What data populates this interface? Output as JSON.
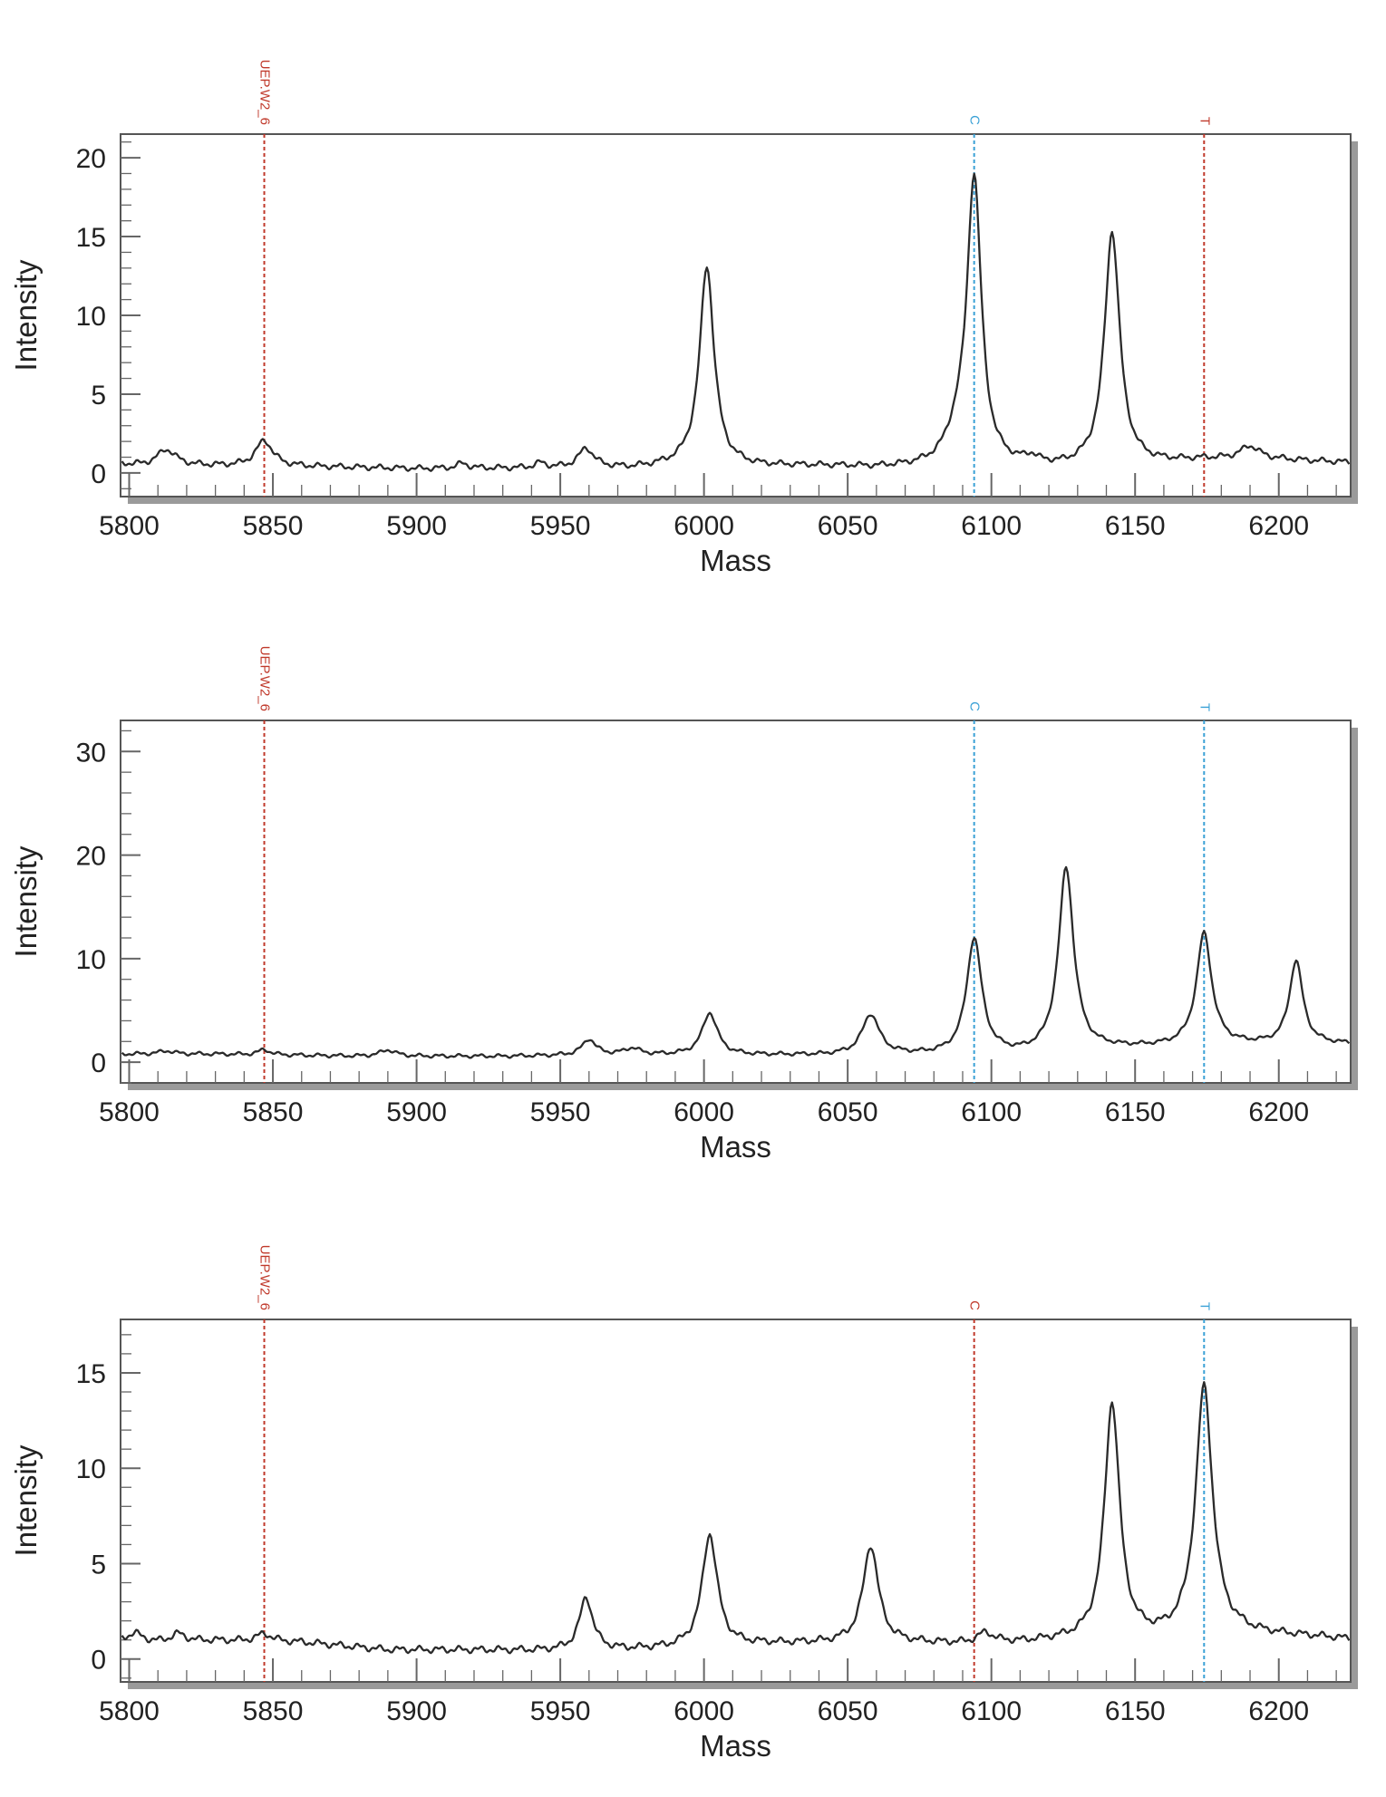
{
  "colors": {
    "red_marker": "#c0392b",
    "blue_marker": "#3aa1d6",
    "trace": "#2a2a2a"
  },
  "chart_data": [
    {
      "type": "line",
      "xlabel": "Mass",
      "ylabel": "Intensity",
      "xlim": [
        5797,
        6225
      ],
      "ylim": [
        -1.5,
        21.5
      ],
      "xticks": [
        5800,
        5850,
        5900,
        5950,
        6000,
        6050,
        6100,
        6150,
        6200
      ],
      "xtick_labels": [
        "5800",
        "5850",
        "5900",
        "5950",
        "6000",
        "6050",
        "6100",
        "6150",
        "6200"
      ],
      "yticks": [
        0,
        5,
        10,
        15,
        20
      ],
      "ytick_labels": [
        "0",
        "5",
        "10",
        "15",
        "20"
      ],
      "markers": [
        {
          "label": "UEP.W2_6",
          "x": 5847,
          "color": "red"
        },
        {
          "label": "C",
          "x": 6094,
          "color": "blue"
        },
        {
          "label": "T",
          "x": 6174,
          "color": "red"
        }
      ],
      "baseline": [
        [
          5797,
          0.6
        ],
        [
          5805,
          0.5
        ],
        [
          5830,
          0.5
        ],
        [
          5860,
          0.45
        ],
        [
          5900,
          0.3
        ],
        [
          5940,
          0.35
        ],
        [
          5975,
          0.45
        ],
        [
          5995,
          0.8
        ],
        [
          6020,
          0.6
        ],
        [
          6060,
          0.5
        ],
        [
          6080,
          0.7
        ],
        [
          6110,
          0.8
        ],
        [
          6125,
          0.7
        ],
        [
          6160,
          0.9
        ],
        [
          6175,
          1.0
        ],
        [
          6200,
          0.9
        ],
        [
          6225,
          0.7
        ]
      ],
      "peaks": [
        {
          "x": 5813,
          "height": 1.0,
          "width": 5
        },
        {
          "x": 5847,
          "height": 1.6,
          "width": 4.5
        },
        {
          "x": 5916,
          "height": 0.3,
          "width": 3
        },
        {
          "x": 5943,
          "height": 0.3,
          "width": 3
        },
        {
          "x": 5959,
          "height": 1.2,
          "width": 4
        },
        {
          "x": 6001,
          "height": 12.4,
          "width": 3.8
        },
        {
          "x": 6088,
          "height": 1.5,
          "width": 6
        },
        {
          "x": 6094,
          "height": 17.8,
          "width": 3.8
        },
        {
          "x": 6114,
          "height": 0.4,
          "width": 3
        },
        {
          "x": 6142,
          "height": 14.6,
          "width": 4
        },
        {
          "x": 6190,
          "height": 0.8,
          "width": 5
        }
      ]
    },
    {
      "type": "line",
      "xlabel": "Mass",
      "ylabel": "Intensity",
      "xlim": [
        5797,
        6225
      ],
      "ylim": [
        -2,
        33
      ],
      "xticks": [
        5800,
        5850,
        5900,
        5950,
        6000,
        6050,
        6100,
        6150,
        6200
      ],
      "xtick_labels": [
        "5800",
        "5850",
        "5900",
        "5950",
        "6000",
        "6050",
        "6100",
        "6150",
        "6200"
      ],
      "yticks": [
        0,
        10,
        20,
        30
      ],
      "ytick_labels": [
        "0",
        "10",
        "20",
        "30"
      ],
      "markers": [
        {
          "label": "UEP.W2_6",
          "x": 5847,
          "color": "red"
        },
        {
          "label": "C",
          "x": 6094,
          "color": "blue"
        },
        {
          "label": "T",
          "x": 6174,
          "color": "blue"
        }
      ],
      "baseline": [
        [
          5797,
          0.8
        ],
        [
          5830,
          0.8
        ],
        [
          5880,
          0.6
        ],
        [
          5930,
          0.6
        ],
        [
          5970,
          0.8
        ],
        [
          6040,
          0.8
        ],
        [
          6080,
          1.0
        ],
        [
          6110,
          1.2
        ],
        [
          6140,
          1.7
        ],
        [
          6160,
          1.8
        ],
        [
          6185,
          2.0
        ],
        [
          6210,
          2.0
        ],
        [
          6225,
          1.9
        ]
      ],
      "peaks": [
        {
          "x": 5813,
          "height": 0.3,
          "width": 4
        },
        {
          "x": 5847,
          "height": 0.5,
          "width": 3
        },
        {
          "x": 5890,
          "height": 0.6,
          "width": 4
        },
        {
          "x": 5960,
          "height": 1.5,
          "width": 3.5
        },
        {
          "x": 5975,
          "height": 0.6,
          "width": 4
        },
        {
          "x": 6002,
          "height": 4.0,
          "width": 4
        },
        {
          "x": 6058,
          "height": 3.8,
          "width": 4.5
        },
        {
          "x": 6094,
          "height": 11.0,
          "width": 4
        },
        {
          "x": 6126,
          "height": 17.4,
          "width": 4
        },
        {
          "x": 6174,
          "height": 10.6,
          "width": 4
        },
        {
          "x": 6206,
          "height": 7.9,
          "width": 3.5
        }
      ]
    },
    {
      "type": "line",
      "xlabel": "Mass",
      "ylabel": "Intensity",
      "xlim": [
        5797,
        6225
      ],
      "ylim": [
        -1.2,
        17.8
      ],
      "xticks": [
        5800,
        5850,
        5900,
        5950,
        6000,
        6050,
        6100,
        6150,
        6200
      ],
      "xtick_labels": [
        "5800",
        "5850",
        "5900",
        "5950",
        "6000",
        "6050",
        "6100",
        "6150",
        "6200"
      ],
      "yticks": [
        0,
        5,
        10,
        15
      ],
      "ytick_labels": [
        "0",
        "5",
        "10",
        "15"
      ],
      "markers": [
        {
          "label": "UEP.W2_6",
          "x": 5847,
          "color": "red"
        },
        {
          "label": "C",
          "x": 6094,
          "color": "red"
        },
        {
          "label": "T",
          "x": 6174,
          "color": "blue"
        }
      ],
      "baseline": [
        [
          5797,
          1.0
        ],
        [
          5810,
          0.9
        ],
        [
          5830,
          1.0
        ],
        [
          5860,
          0.9
        ],
        [
          5890,
          0.5
        ],
        [
          5940,
          0.5
        ],
        [
          5975,
          0.6
        ],
        [
          6020,
          0.9
        ],
        [
          6060,
          1.0
        ],
        [
          6090,
          0.9
        ],
        [
          6110,
          1.0
        ],
        [
          6125,
          1.2
        ],
        [
          6150,
          1.4
        ],
        [
          6185,
          1.6
        ],
        [
          6210,
          1.3
        ],
        [
          6225,
          1.1
        ]
      ],
      "peaks": [
        {
          "x": 5802,
          "height": 0.4,
          "width": 4
        },
        {
          "x": 5817,
          "height": 0.4,
          "width": 4
        },
        {
          "x": 5847,
          "height": 0.4,
          "width": 4
        },
        {
          "x": 5959,
          "height": 2.7,
          "width": 3.5
        },
        {
          "x": 6002,
          "height": 5.8,
          "width": 4
        },
        {
          "x": 6058,
          "height": 5.0,
          "width": 4
        },
        {
          "x": 6098,
          "height": 0.5,
          "width": 4
        },
        {
          "x": 6142,
          "height": 12.2,
          "width": 4
        },
        {
          "x": 6174,
          "height": 12.8,
          "width": 4.5
        }
      ]
    }
  ]
}
